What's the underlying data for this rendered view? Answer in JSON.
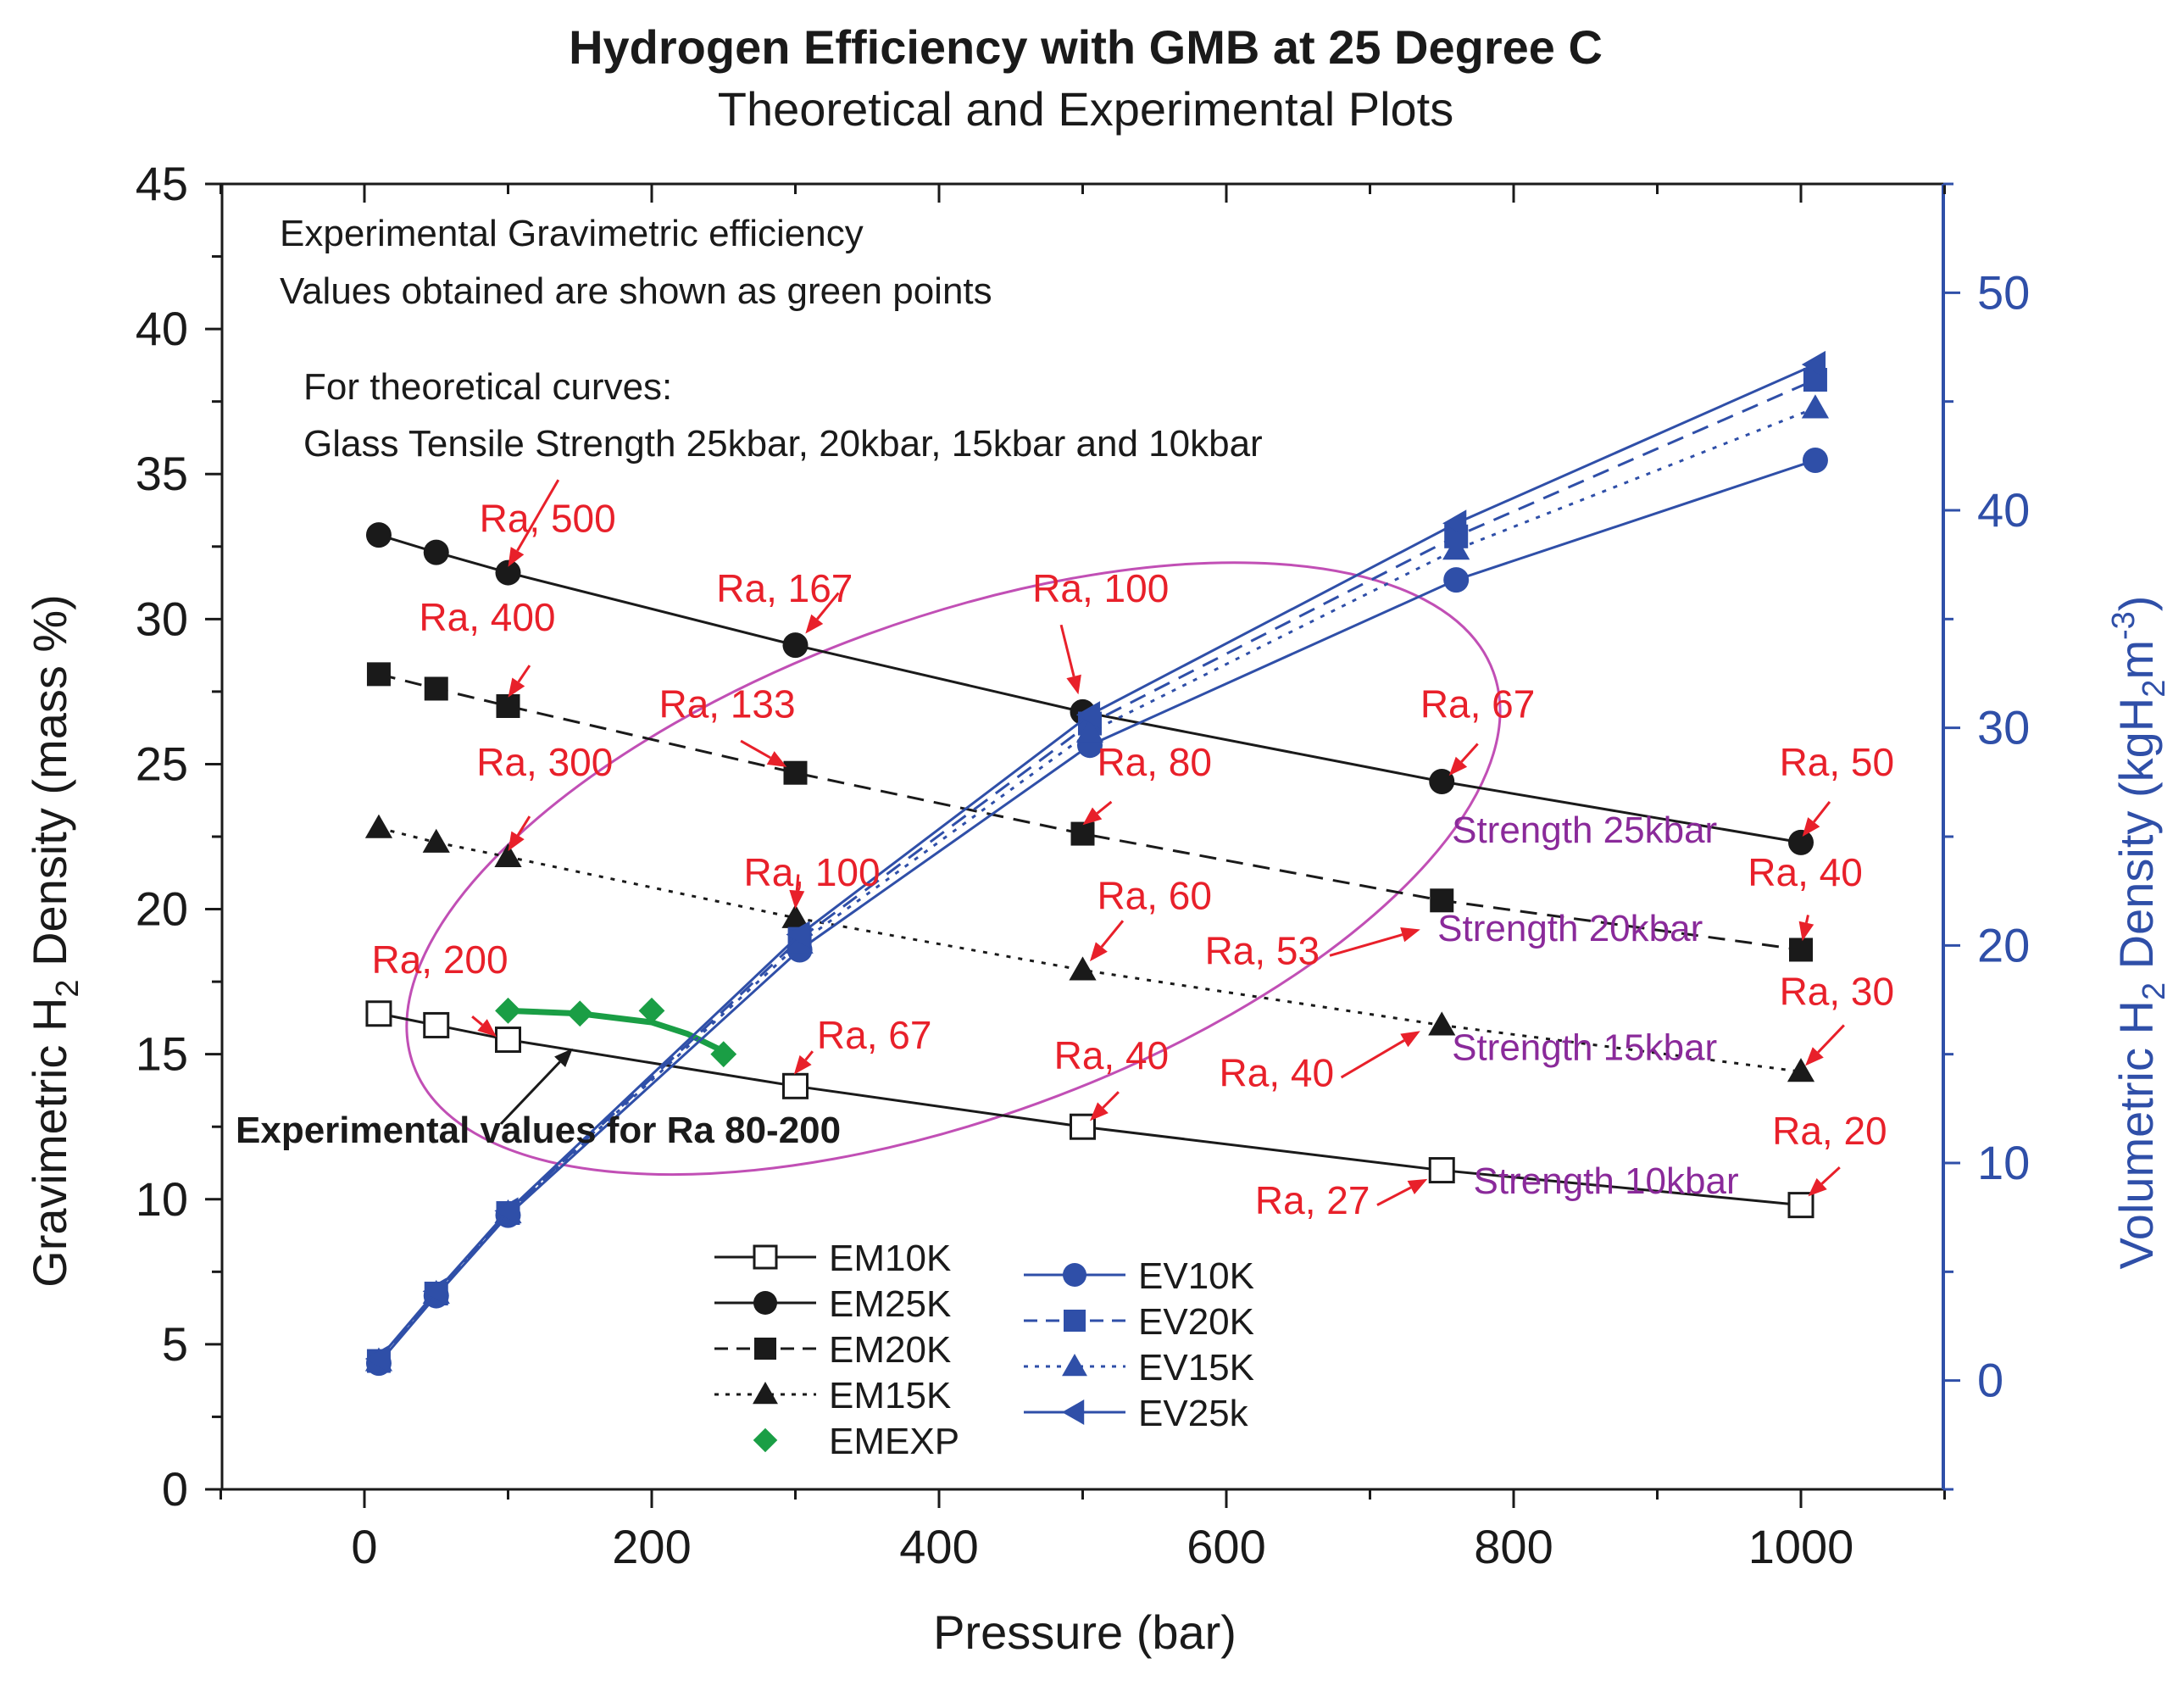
{
  "chart_data": {
    "type": "line",
    "title": "Hydrogen Efficiency with GMB at 25 Degree C",
    "subtitle": "Theoretical and Experimental Plots",
    "xlabel": "Pressure (bar)",
    "ylabel_left": {
      "pre": "Gravimetric H",
      "sub": "2",
      "post": " Density (mass %)"
    },
    "ylabel_right": {
      "pre": "Volumetric H",
      "sub1": "2",
      "mid": " Density (kgH",
      "sub2": "2",
      "mid2": "m",
      "sup": "-3",
      "post": ")"
    },
    "xlim": [
      -100,
      1100
    ],
    "ylim_left": [
      0,
      45
    ],
    "ylim_right": [
      -5,
      55
    ],
    "xticks": [
      0,
      200,
      400,
      600,
      800,
      1000
    ],
    "yticks_left": [
      0,
      5,
      10,
      15,
      20,
      25,
      30,
      35,
      40,
      45
    ],
    "yticks_right": [
      0,
      10,
      20,
      30,
      40,
      50
    ],
    "colors": {
      "black": "#1a1a1a",
      "blue": "#2f4fa8",
      "green": "#1a9e45",
      "red": "#e8202a",
      "purple": "#8a2a9a",
      "magenta": "#c14fb5"
    },
    "notes": [
      "Experimental Gravimetric efficiency",
      "Values obtained are shown as green points",
      "For theoretical curves:",
      "Glass Tensile Strength  25kbar, 20kbar, 15kbar and 10kbar"
    ],
    "series": [
      {
        "name": "EM10K",
        "axis": "left",
        "marker": "square-open",
        "dash": "solid",
        "color": "#1a1a1a",
        "x": [
          10,
          50,
          100,
          300,
          500,
          750,
          1000
        ],
        "y": [
          16.4,
          16.0,
          15.5,
          13.9,
          12.5,
          11.0,
          9.8
        ]
      },
      {
        "name": "EM25K",
        "axis": "left",
        "marker": "circle",
        "dash": "solid",
        "color": "#1a1a1a",
        "x": [
          10,
          50,
          100,
          300,
          500,
          750,
          1000
        ],
        "y": [
          32.9,
          32.3,
          31.6,
          29.1,
          26.8,
          24.4,
          22.3
        ]
      },
      {
        "name": "EM20K",
        "axis": "left",
        "marker": "square",
        "dash": "dash",
        "color": "#1a1a1a",
        "x": [
          10,
          50,
          100,
          300,
          500,
          750,
          1000
        ],
        "y": [
          28.1,
          27.6,
          27.0,
          24.7,
          22.6,
          20.3,
          18.6
        ]
      },
      {
        "name": "EM15K",
        "axis": "left",
        "marker": "triangle",
        "dash": "dot",
        "color": "#1a1a1a",
        "x": [
          10,
          50,
          100,
          300,
          500,
          750,
          1000
        ],
        "y": [
          22.8,
          22.3,
          21.8,
          19.7,
          17.9,
          16.0,
          14.4
        ]
      },
      {
        "name": "EMEXP",
        "axis": "left",
        "marker": "diamond",
        "dash": "none",
        "color": "#1a9e45",
        "x": [
          100,
          150,
          200,
          250
        ],
        "y": [
          16.5,
          16.4,
          16.5,
          15.0
        ]
      },
      {
        "name": "EV10K",
        "axis": "right",
        "marker": "circle",
        "dash": "solid",
        "color": "#2f4fa8",
        "x": [
          10,
          50,
          100,
          303,
          505,
          760,
          1010
        ],
        "y": [
          0.8,
          3.9,
          7.6,
          19.8,
          29.2,
          36.8,
          42.3
        ]
      },
      {
        "name": "EV20K",
        "axis": "right",
        "marker": "square",
        "dash": "dash",
        "color": "#2f4fa8",
        "x": [
          10,
          50,
          100,
          303,
          505,
          760,
          1010
        ],
        "y": [
          0.9,
          4.0,
          7.7,
          20.3,
          30.2,
          38.8,
          46.0
        ]
      },
      {
        "name": "EV15K",
        "axis": "right",
        "marker": "triangle",
        "dash": "dot",
        "color": "#2f4fa8",
        "x": [
          10,
          50,
          100,
          303,
          505,
          760,
          1010
        ],
        "y": [
          0.9,
          4.0,
          7.7,
          20.1,
          29.8,
          38.2,
          44.7
        ]
      },
      {
        "name": "EV25k",
        "axis": "right",
        "marker": "triangle-left",
        "dash": "solid",
        "color": "#2f4fa8",
        "x": [
          10,
          50,
          100,
          303,
          505,
          760,
          1010
        ],
        "y": [
          1.0,
          4.1,
          7.8,
          20.5,
          30.6,
          39.4,
          46.7
        ]
      }
    ],
    "legend_left": [
      "EM10K",
      "EM25K",
      "EM20K",
      "EM15K",
      "EMEXP"
    ],
    "legend_right": [
      "EV10K",
      "EV20K",
      "EV15K",
      "EV25k"
    ],
    "experimental_curve": {
      "x": [
        100,
        150,
        200,
        225,
        250
      ],
      "y": [
        16.5,
        16.4,
        16.1,
        15.7,
        15.1
      ]
    },
    "experimental_label": "Experimental values for Ra 80-200",
    "experimental_arrow": {
      "from": [
        95,
        12.6
      ],
      "to": [
        145,
        15.2
      ]
    },
    "highlight_ellipse": {
      "cx": 410,
      "cy": 21.4,
      "rx": 400,
      "ry": 8.6,
      "angle_deg": -20
    },
    "annotations": [
      {
        "text": "Ra, 500",
        "x": 80,
        "y": 33.0,
        "ax": 135,
        "ay": 34.8,
        "tx": 100,
        "ty": 31.8
      },
      {
        "text": "Ra, 167",
        "x": 245,
        "y": 30.6,
        "ax": 330,
        "ay": 30.9,
        "tx": 307,
        "ty": 29.5
      },
      {
        "text": "Ra, 100",
        "x": 465,
        "y": 30.6,
        "ax": 485,
        "ay": 29.8,
        "tx": 497,
        "ty": 27.4
      },
      {
        "text": "Ra, 400",
        "x": 38,
        "y": 29.6,
        "ax": 115,
        "ay": 28.4,
        "tx": 100,
        "ty": 27.3
      },
      {
        "text": "Ra, 133",
        "x": 205,
        "y": 26.6,
        "ax": 262,
        "ay": 25.8,
        "tx": 294,
        "ty": 24.9
      },
      {
        "text": "Ra, 80",
        "x": 510,
        "y": 24.6,
        "ax": 520,
        "ay": 23.7,
        "tx": 500,
        "ty": 22.9
      },
      {
        "text": "Ra, 67",
        "x": 735,
        "y": 26.6,
        "ax": 775,
        "ay": 25.7,
        "tx": 755,
        "ty": 24.6
      },
      {
        "text": "Ra, 50",
        "x": 985,
        "y": 24.6,
        "ax": 1020,
        "ay": 23.7,
        "tx": 1001,
        "ty": 22.5
      },
      {
        "text": "Ra, 300",
        "x": 78,
        "y": 24.6,
        "ax": 115,
        "ay": 23.2,
        "tx": 100,
        "ty": 22.0
      },
      {
        "text": "Ra, 100",
        "x": 264,
        "y": 20.8,
        "ax": 302,
        "ay": 21.2,
        "tx": 300,
        "ty": 20.0
      },
      {
        "text": "Ra, 60",
        "x": 510,
        "y": 20.0,
        "ax": 528,
        "ay": 19.6,
        "tx": 505,
        "ty": 18.2
      },
      {
        "text": "Ra, 40",
        "x": 963,
        "y": 20.8,
        "ax": 1005,
        "ay": 19.8,
        "tx": 1001,
        "ty": 18.9
      },
      {
        "text": "Ra, 53",
        "x": 585,
        "y": 18.1,
        "ax": 672,
        "ay": 18.4,
        "tx": 735,
        "ty": 19.3
      },
      {
        "text": "Ra, 200",
        "x": 5,
        "y": 17.8,
        "ax": 75,
        "ay": 16.3,
        "tx": 92,
        "ty": 15.6
      },
      {
        "text": "Ra, 67",
        "x": 315,
        "y": 15.2,
        "ax": 312,
        "ay": 15.1,
        "tx": 299,
        "ty": 14.3
      },
      {
        "text": "Ra, 30",
        "x": 985,
        "y": 16.7,
        "ax": 1030,
        "ay": 16.0,
        "tx": 1003,
        "ty": 14.6
      },
      {
        "text": "Ra, 40",
        "x": 480,
        "y": 14.5,
        "ax": 525,
        "ay": 13.7,
        "tx": 505,
        "ty": 12.7
      },
      {
        "text": "Ra, 40",
        "x": 595,
        "y": 13.9,
        "ax": 680,
        "ay": 14.2,
        "tx": 735,
        "ty": 15.8
      },
      {
        "text": "Ra, 20",
        "x": 980,
        "y": 11.9,
        "ax": 1027,
        "ay": 11.1,
        "tx": 1005,
        "ty": 10.1
      },
      {
        "text": "Ra, 27",
        "x": 620,
        "y": 9.5,
        "ax": 705,
        "ay": 9.8,
        "tx": 740,
        "ty": 10.7
      }
    ],
    "strength_labels": [
      {
        "text": "Strength 25kbar",
        "x": 757,
        "y": 22.3
      },
      {
        "text": "Strength 20kbar",
        "x": 747,
        "y": 18.9
      },
      {
        "text": "Strength 15kbar",
        "x": 757,
        "y": 14.8
      },
      {
        "text": "Strength 10kbar",
        "x": 772,
        "y": 10.2
      }
    ]
  }
}
